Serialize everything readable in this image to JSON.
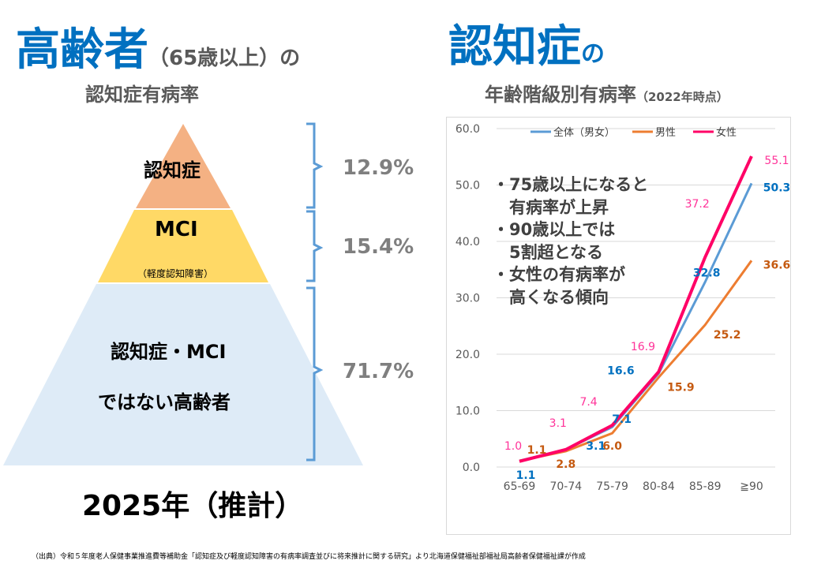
{
  "left": {
    "title_main": "高齢者",
    "title_paren": "（65歳以上）の",
    "subtitle": "認知症有病率",
    "tiers": [
      {
        "label": "認知症",
        "sub": "",
        "percent": "12.9%",
        "color": "#f4b183"
      },
      {
        "label": "MCI",
        "sub": "（軽度認知障害）",
        "percent": "15.4%",
        "color": "#ffd966"
      },
      {
        "label": "認知症・MCI",
        "label2": "ではない高齢者",
        "percent": "71.7%",
        "color": "#deebf7"
      }
    ],
    "year": "2025年（推計）"
  },
  "right": {
    "title_main": "認知症",
    "title_suffix": "の",
    "subtitle": "年齢階級別有病率",
    "subtitle_note": "（2022年時点）"
  },
  "notes": [
    "・75歳以上になると",
    "　有病率が上昇",
    "・90歳以上では",
    "　5割超となる",
    "・女性の有病率が",
    "　高くなる傾向"
  ],
  "chart_data": {
    "type": "line",
    "categories": [
      "65-69",
      "70-74",
      "75-79",
      "80-84",
      "85-89",
      "≧90"
    ],
    "ylim": [
      0,
      60
    ],
    "yticks": [
      "0.0",
      "10.0",
      "20.0",
      "30.0",
      "40.0",
      "50.0",
      "60.0"
    ],
    "grid": true,
    "legend_placement": "top",
    "series": [
      {
        "name": "全体（男女）",
        "color": "#5b9bd5",
        "label_color": "#0070c0",
        "values": [
          1.1,
          3.1,
          7.1,
          16.6,
          32.8,
          50.3
        ]
      },
      {
        "name": "男性",
        "color": "#ed7d31",
        "label_color": "#c55a11",
        "values": [
          1.1,
          2.8,
          6.0,
          15.9,
          25.2,
          36.6
        ]
      },
      {
        "name": "女性",
        "color": "#ff0066",
        "label_color": "#ff3399",
        "values": [
          1.0,
          3.1,
          7.4,
          16.9,
          37.2,
          55.1
        ]
      }
    ]
  },
  "footer": "（出典）令和５年度老人保健事業推進費等補助金「認知症及び軽度認知障害の有病率調査並びに将来推計に関する研究」より北海道保健福祉部福祉局高齢者保健福祉課が作成"
}
